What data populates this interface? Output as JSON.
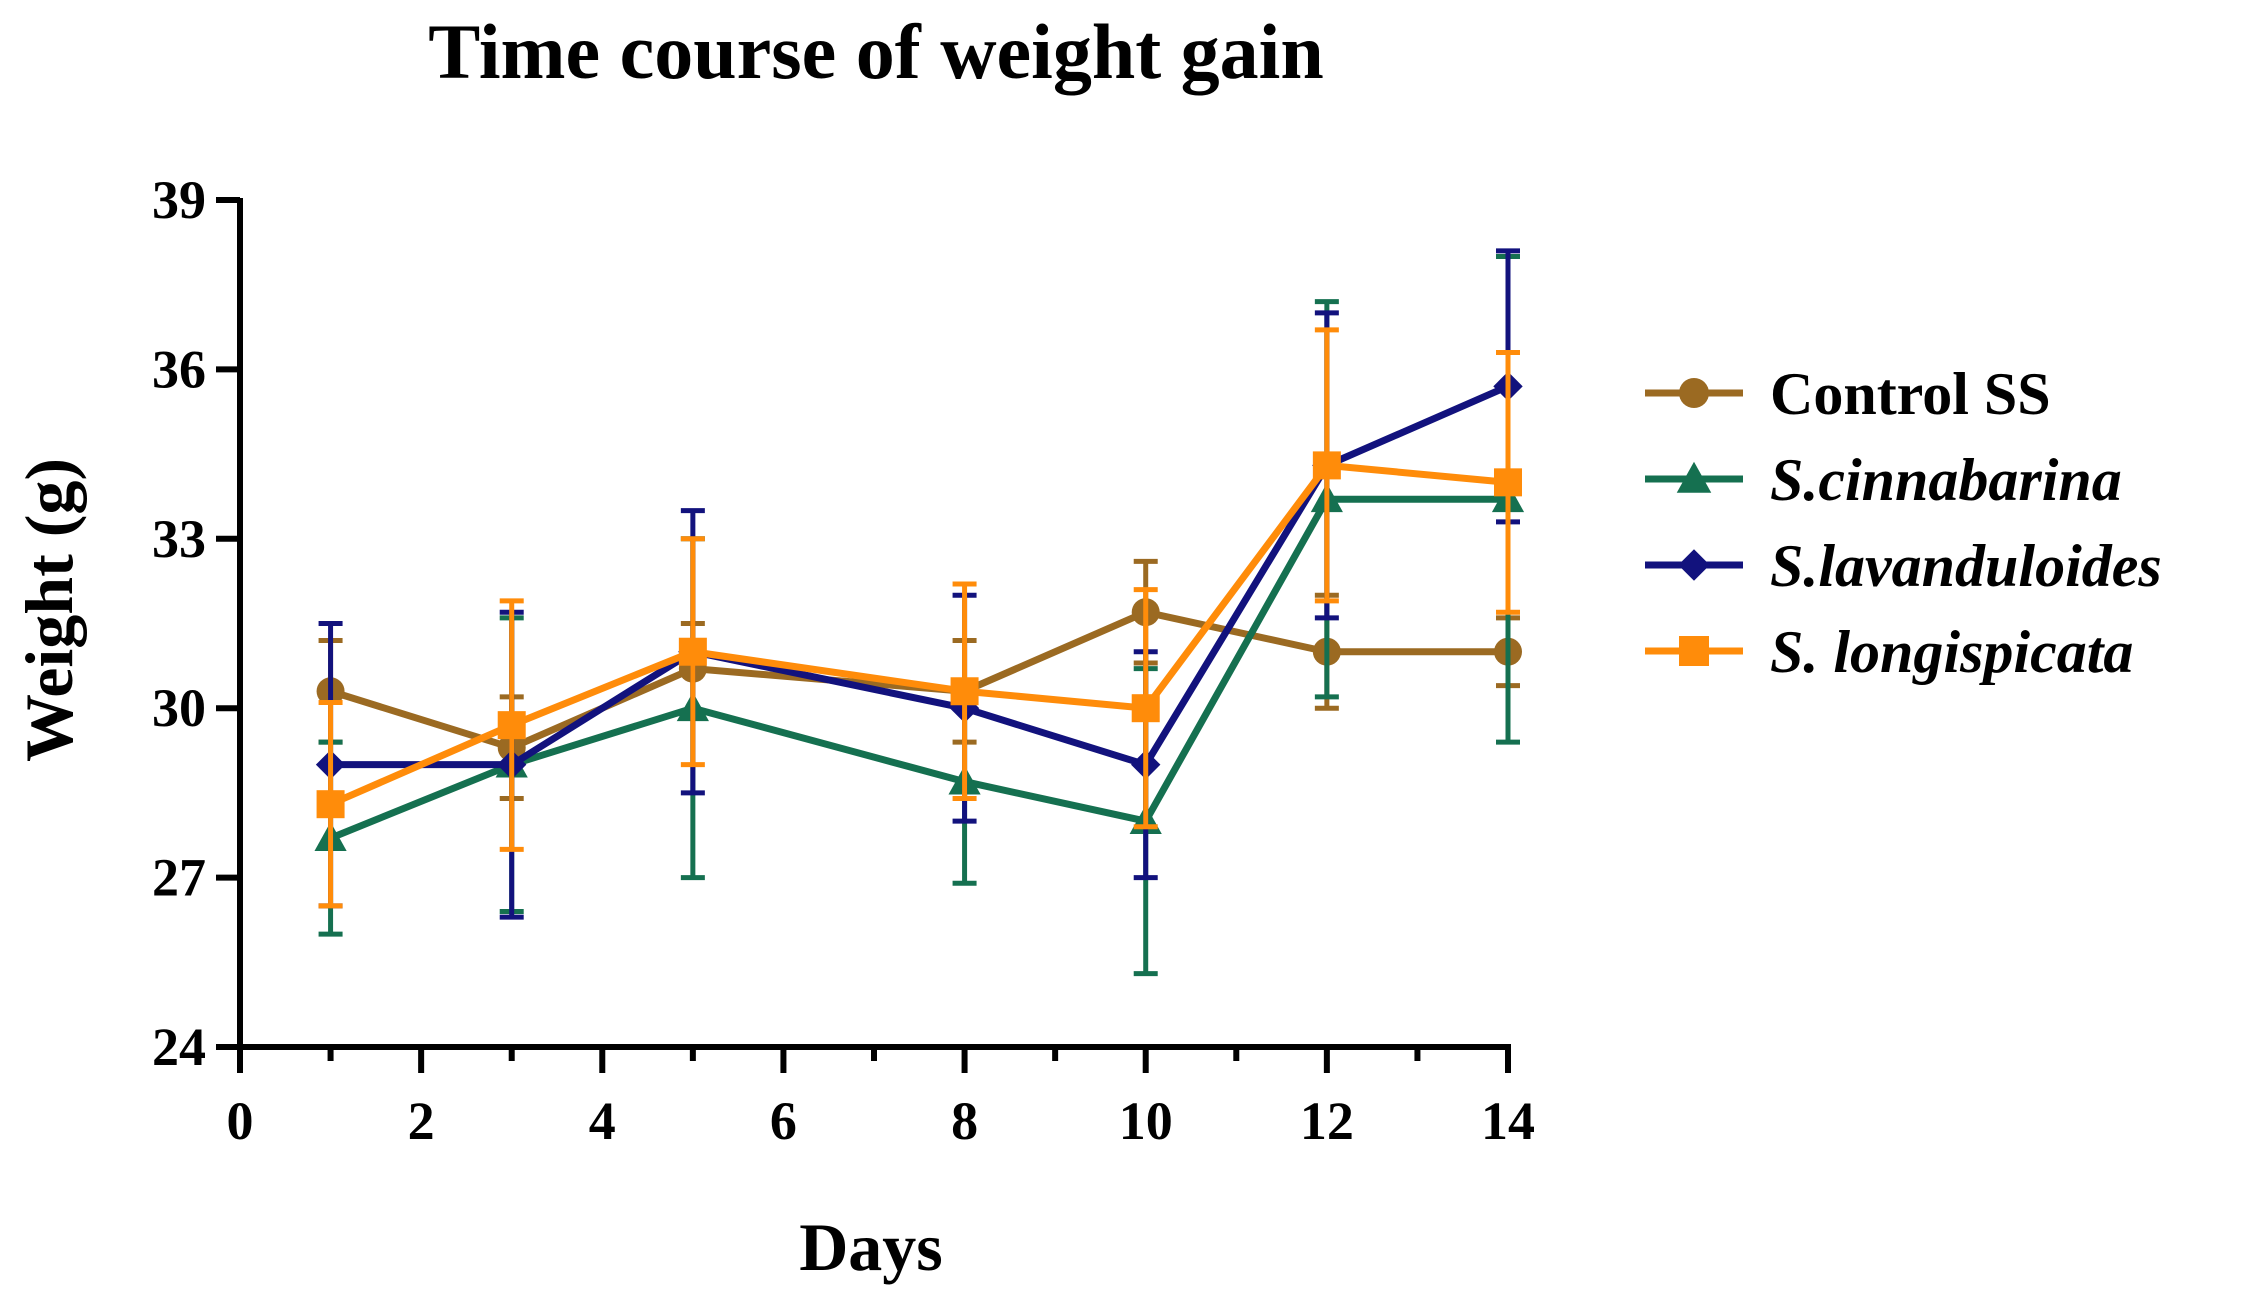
{
  "chart_data": {
    "type": "line",
    "title": "Time course of weight gain",
    "xlabel": "Days",
    "ylabel": "Weight (g)",
    "xlim": [
      0,
      14
    ],
    "ylim": [
      24,
      39
    ],
    "xticks": [
      0,
      2,
      4,
      6,
      8,
      10,
      12,
      14
    ],
    "yticks": [
      24,
      27,
      30,
      33,
      36,
      39
    ],
    "xtick_labels": [
      "0",
      "2",
      "4",
      "6",
      "8",
      "10",
      "12",
      "14"
    ],
    "ytick_labels": [
      "24",
      "27",
      "30",
      "33",
      "36",
      "39"
    ],
    "grid": false,
    "legend_position": "right",
    "series": [
      {
        "name": "Control SS",
        "italic": false,
        "color": "#9B6A22",
        "marker": "circle",
        "x": [
          1,
          3,
          5,
          8,
          10,
          12,
          14
        ],
        "values": [
          30.3,
          29.3,
          30.7,
          30.3,
          31.7,
          31.0,
          31.0
        ],
        "errors": [
          0.9,
          0.9,
          0.8,
          0.9,
          0.9,
          1.0,
          0.6
        ]
      },
      {
        "name": "S.cinnabarina",
        "italic": true,
        "color": "#157050",
        "marker": "triangle",
        "x": [
          1,
          3,
          5,
          8,
          10,
          12,
          14
        ],
        "values": [
          27.7,
          29.0,
          30.0,
          28.7,
          28.0,
          33.7,
          33.7
        ],
        "errors": [
          1.7,
          2.6,
          3.0,
          1.8,
          2.7,
          3.5,
          4.3
        ]
      },
      {
        "name": "S.lavanduloides",
        "italic": true,
        "color": "#12127D",
        "marker": "diamond",
        "x": [
          1,
          3,
          5,
          8,
          10,
          12,
          14
        ],
        "values": [
          29.0,
          29.0,
          31.0,
          30.0,
          29.0,
          34.3,
          35.7
        ],
        "errors": [
          2.5,
          2.7,
          2.5,
          2.0,
          2.0,
          2.7,
          2.4
        ]
      },
      {
        "name": "S. longispicata",
        "italic": true,
        "color": "#FF8C0A",
        "marker": "square",
        "x": [
          1,
          3,
          5,
          8,
          10,
          12,
          14
        ],
        "values": [
          28.3,
          29.7,
          31.0,
          30.3,
          30.0,
          34.3,
          34.0
        ],
        "errors": [
          1.8,
          2.2,
          2.0,
          1.9,
          2.1,
          2.4,
          2.3
        ]
      }
    ]
  }
}
